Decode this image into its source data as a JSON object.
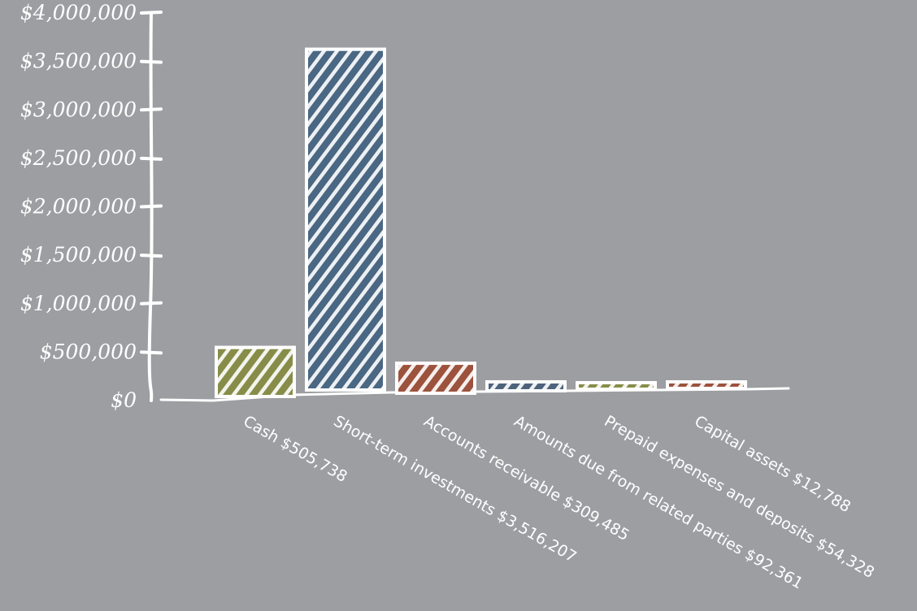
{
  "chart_data": {
    "type": "bar",
    "categories": [
      "Cash $505,738",
      "Short-term investments $3,516,207",
      "Accounts receivable $309,485",
      "Amounts due from related parties $92,361",
      "Prepaid expenses and deposits $54,328",
      "Capital assets $12,788"
    ],
    "values": [
      505738,
      3516207,
      309485,
      92361,
      54328,
      12788
    ],
    "ylim": [
      0,
      4000000
    ],
    "yticks": [
      0,
      500000,
      1000000,
      1500000,
      2000000,
      2500000,
      3000000,
      3500000,
      4000000
    ],
    "ytick_labels": [
      "$0",
      "$500,000",
      "$1,000,000",
      "$1,500,000",
      "$2,000,000",
      "$2,500,000",
      "$3,000,000",
      "$3,500,000",
      "$4,000,000"
    ],
    "bar_colors": [
      "#7d8339",
      "#3b5a78",
      "#94432b",
      "#3d5670",
      "#7d8339",
      "#94432b"
    ],
    "style": "hand-drawn sketch with white outlines and hatching",
    "grid": false,
    "legend": "none"
  }
}
